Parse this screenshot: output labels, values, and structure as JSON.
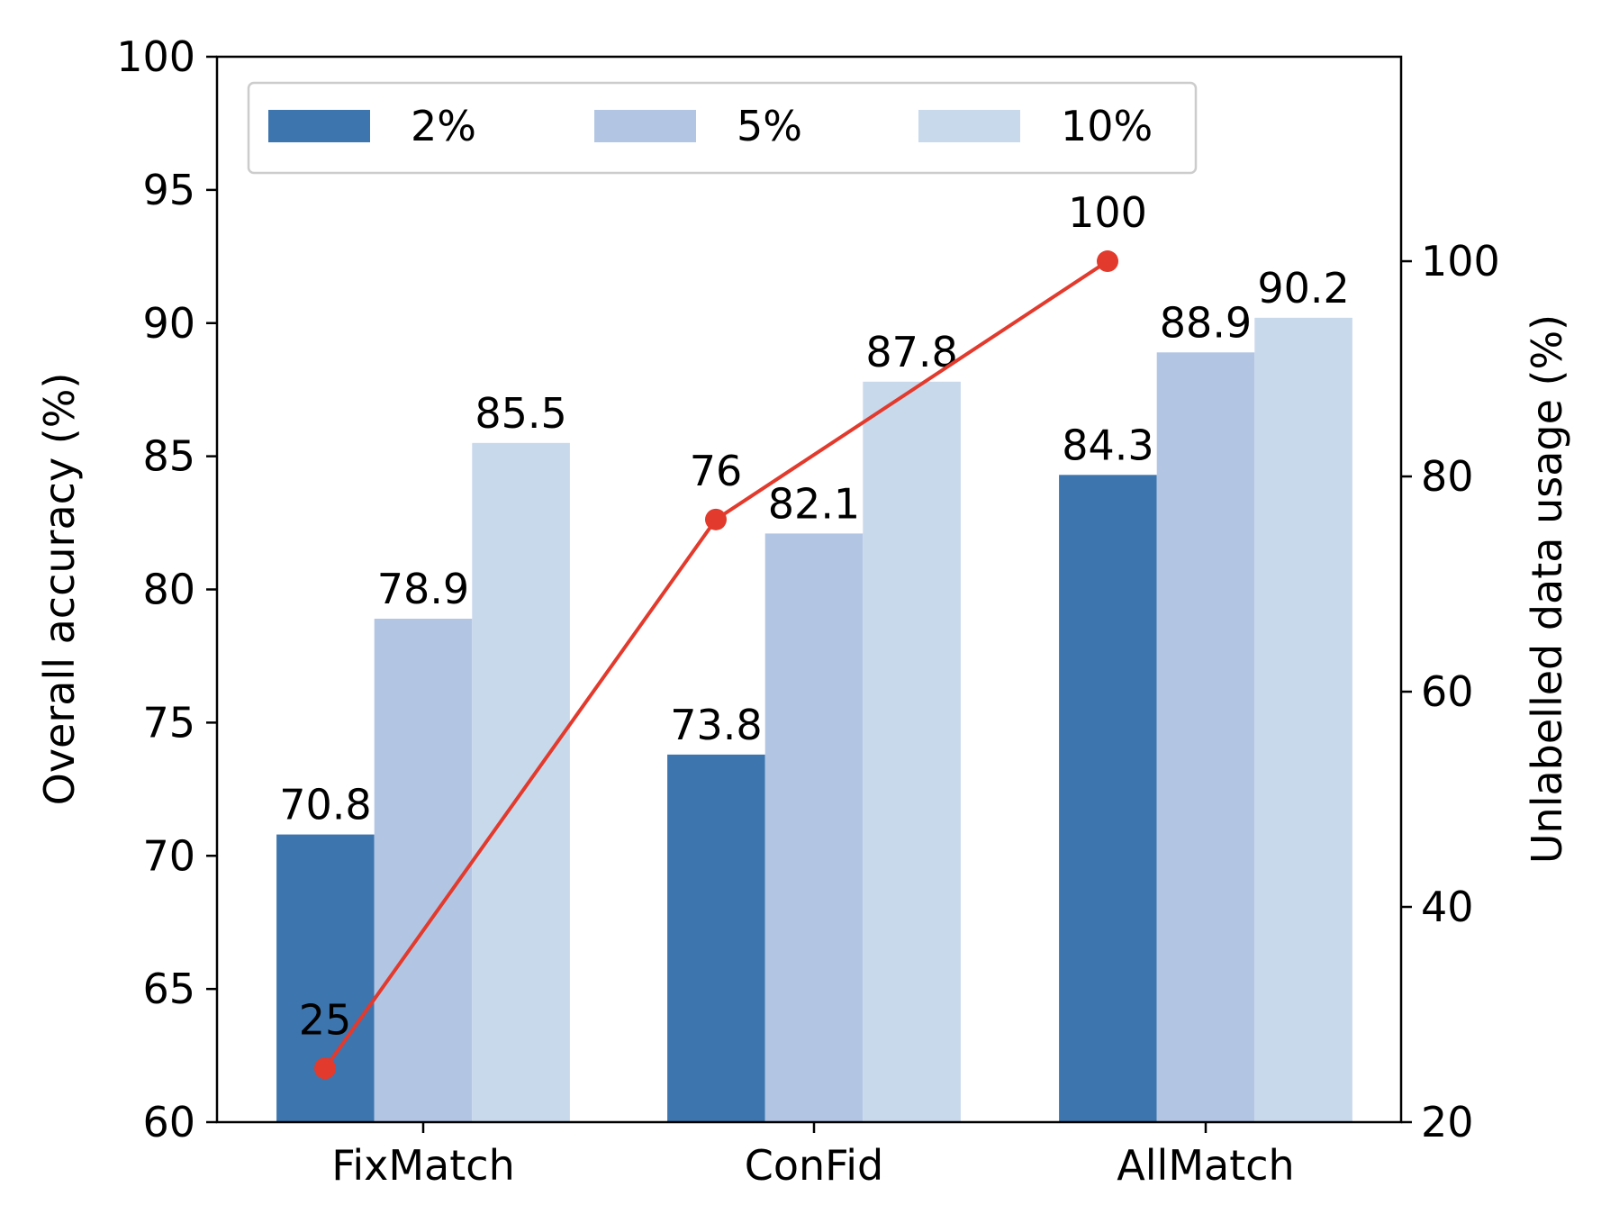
{
  "chart_data": {
    "type": "bar",
    "categories": [
      "FixMatch",
      "ConFid",
      "AllMatch"
    ],
    "series": [
      {
        "name": "2%",
        "values": [
          70.8,
          73.8,
          84.3
        ],
        "color": "#3d75ae"
      },
      {
        "name": "5%",
        "values": [
          78.9,
          82.1,
          88.9
        ],
        "color": "#b2c6e4"
      },
      {
        "name": "10%",
        "values": [
          85.5,
          87.8,
          90.2
        ],
        "color": "#c9d9ec"
      }
    ],
    "line_series": {
      "values": [
        25,
        76,
        100
      ],
      "labels": [
        "25",
        "76",
        "100"
      ],
      "color": "#e23a2c",
      "axis": "right"
    },
    "bar_labels": [
      [
        "70.8",
        "73.8",
        "84.3"
      ],
      [
        "78.9",
        "82.1",
        "88.9"
      ],
      [
        "85.5",
        "87.8",
        "90.2"
      ]
    ],
    "ylabel": "Overall accuracy (%)",
    "ylabel_right": "Unlabelled data usage (%)",
    "ylim": [
      60,
      100
    ],
    "yticks": [
      60,
      65,
      70,
      75,
      80,
      85,
      90,
      95,
      100
    ],
    "ytick_labels": [
      "60",
      "65",
      "70",
      "75",
      "80",
      "85",
      "90",
      "95",
      "100"
    ],
    "ylim_right": [
      20,
      119
    ],
    "yticks_right": [
      20,
      40,
      60,
      80,
      100
    ],
    "ytick_labels_right": [
      "20",
      "40",
      "60",
      "80",
      "100"
    ],
    "grid": false,
    "legend_position": "top"
  }
}
